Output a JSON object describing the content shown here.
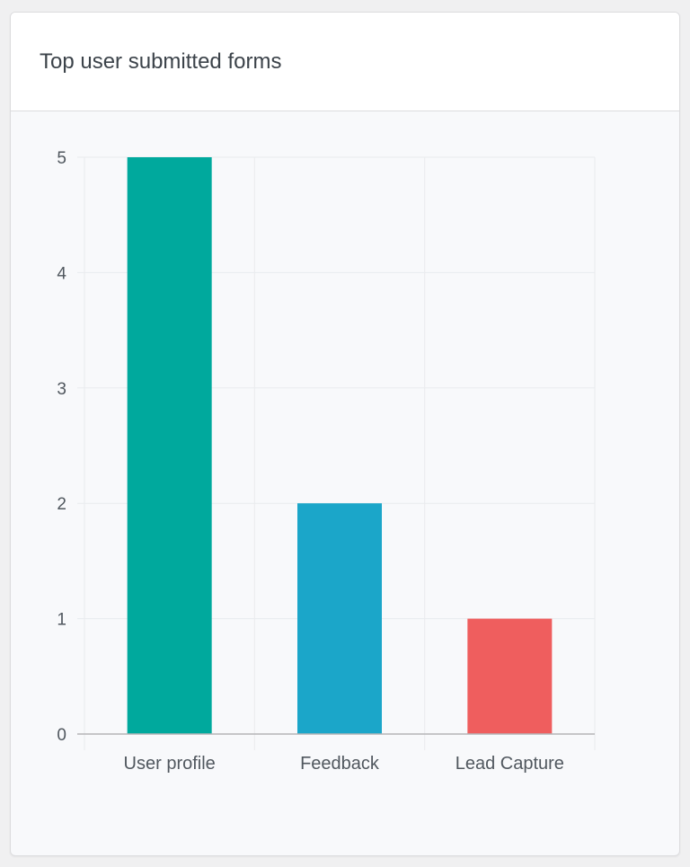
{
  "card": {
    "title": "Top user submitted forms"
  },
  "chart_data": {
    "type": "bar",
    "title": "Top user submitted forms",
    "categories": [
      "User profile",
      "Feedback",
      "Lead Capture"
    ],
    "values": [
      5,
      2,
      1
    ],
    "colors": [
      "#00a99d",
      "#1ba6c9",
      "#ef5e5e"
    ],
    "xlabel": "",
    "ylabel": "",
    "ylim": [
      0,
      5
    ],
    "yticks": [
      "0",
      "1",
      "2",
      "3",
      "4",
      "5"
    ],
    "grid": true,
    "legend": "none"
  },
  "colors": {
    "grid": "#e9ebee",
    "axis": "#b5b5b8",
    "tick_text": "#50575e"
  }
}
